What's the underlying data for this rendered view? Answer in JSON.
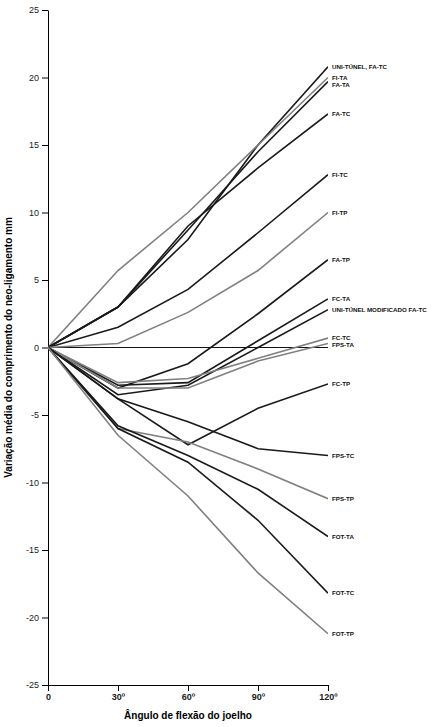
{
  "chart_data": {
    "type": "line",
    "x_label": "Ângulo de flexão do joelho",
    "y_label": "Variação média do comprimento do neo-ligamento mm",
    "x": [
      0,
      30,
      60,
      90,
      120
    ],
    "xlim": [
      0,
      120
    ],
    "xticks": [
      0,
      {
        "value": 30,
        "label": "30º"
      },
      {
        "value": 60,
        "label": "60º"
      },
      {
        "value": 90,
        "label": "90º"
      },
      {
        "value": 120,
        "label": "120º"
      }
    ],
    "ylim": [
      -25,
      25
    ],
    "yticks": [
      -25,
      -20,
      -15,
      -10,
      -5,
      0,
      5,
      10,
      15,
      20,
      25
    ],
    "grid": false,
    "series": [
      {
        "name": "UNI-TÚNEL, FA-TC",
        "color": "#1a1a1a",
        "values": [
          0,
          3.0,
          8.0,
          15.0,
          20.8
        ]
      },
      {
        "name": "FI-TA",
        "color": "#808080",
        "values": [
          0,
          5.7,
          10.0,
          15.0,
          20.0
        ]
      },
      {
        "name": "FA-TA",
        "color": "#1a1a1a",
        "values": [
          0,
          3.0,
          8.7,
          14.5,
          19.7
        ]
      },
      {
        "name": "FA-TC",
        "color": "#1a1a1a",
        "values": [
          0,
          3.0,
          9.0,
          13.3,
          17.3
        ]
      },
      {
        "name": "FI-TC",
        "color": "#1a1a1a",
        "values": [
          0,
          1.5,
          4.3,
          8.5,
          12.8
        ]
      },
      {
        "name": "FI-TP",
        "color": "#808080",
        "values": [
          0,
          0.3,
          2.6,
          5.7,
          10.0
        ]
      },
      {
        "name": "FA-TP",
        "color": "#1a1a1a",
        "values": [
          0,
          -3.0,
          -1.2,
          2.5,
          6.5
        ]
      },
      {
        "name": "FC-TA",
        "color": "#1a1a1a",
        "values": [
          0,
          -2.8,
          -2.6,
          0.5,
          3.6
        ]
      },
      {
        "name": "UNI-TÚNEL MODIFICADO FA-TC",
        "color": "#1a1a1a",
        "values": [
          0,
          -3.5,
          -2.8,
          0.0,
          2.8
        ]
      },
      {
        "name": "FC-TC",
        "color": "#808080",
        "values": [
          0,
          -2.6,
          -2.3,
          -0.8,
          0.7
        ]
      },
      {
        "name": "FPS-TA",
        "color": "#808080",
        "values": [
          0,
          -3.0,
          -3.0,
          -1.0,
          0.3
        ]
      },
      {
        "name": "FC-TP",
        "color": "#1a1a1a",
        "values": [
          0,
          -3.8,
          -7.2,
          -4.5,
          -2.7
        ]
      },
      {
        "name": "FPS-TC",
        "color": "#1a1a1a",
        "values": [
          0,
          -3.8,
          -5.5,
          -7.5,
          -8.0
        ]
      },
      {
        "name": "FPS-TP",
        "color": "#808080",
        "values": [
          0,
          -6.0,
          -7.0,
          -9.0,
          -11.2
        ]
      },
      {
        "name": "FOT-TA",
        "color": "#1a1a1a",
        "values": [
          0,
          -5.8,
          -8.0,
          -10.5,
          -14.0
        ]
      },
      {
        "name": "FOT-TC",
        "color": "#1a1a1a",
        "values": [
          0,
          -6.0,
          -8.5,
          -12.8,
          -18.2
        ]
      },
      {
        "name": "FOT-TP",
        "color": "#808080",
        "values": [
          0,
          -6.5,
          -11.0,
          -16.7,
          -21.2
        ]
      }
    ]
  }
}
